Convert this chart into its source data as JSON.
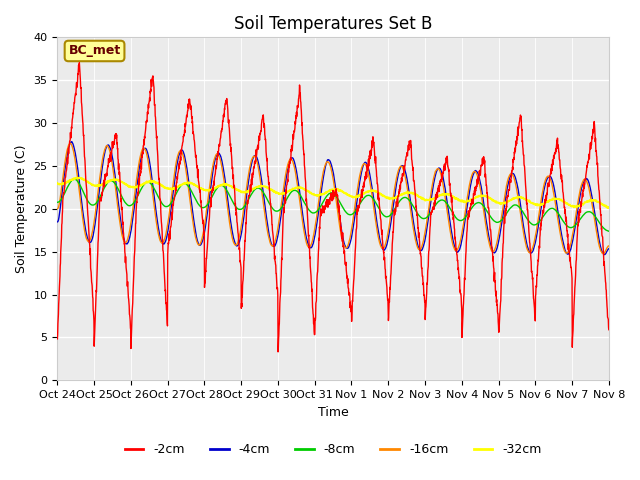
{
  "title": "Soil Temperatures Set B",
  "xlabel": "Time",
  "ylabel": "Soil Temperature (C)",
  "ylim": [
    0,
    40
  ],
  "yticks": [
    0,
    5,
    10,
    15,
    20,
    25,
    30,
    35,
    40
  ],
  "x_labels": [
    "Oct 24",
    "Oct 25",
    "Oct 26",
    "Oct 27",
    "Oct 28",
    "Oct 29",
    "Oct 30",
    "Oct 31",
    "Nov 1",
    "Nov 2",
    "Nov 3",
    "Nov 4",
    "Nov 5",
    "Nov 6",
    "Nov 7",
    "Nov 8"
  ],
  "annotation": "BC_met",
  "line_colors": {
    "-2cm": "#ff0000",
    "-4cm": "#0000cc",
    "-8cm": "#00cc00",
    "-16cm": "#ff8800",
    "-32cm": "#ffff00"
  },
  "bg_color": "#ebebeb",
  "fig_color": "#ffffff",
  "n_points_per_day": 144,
  "n_days": 15
}
